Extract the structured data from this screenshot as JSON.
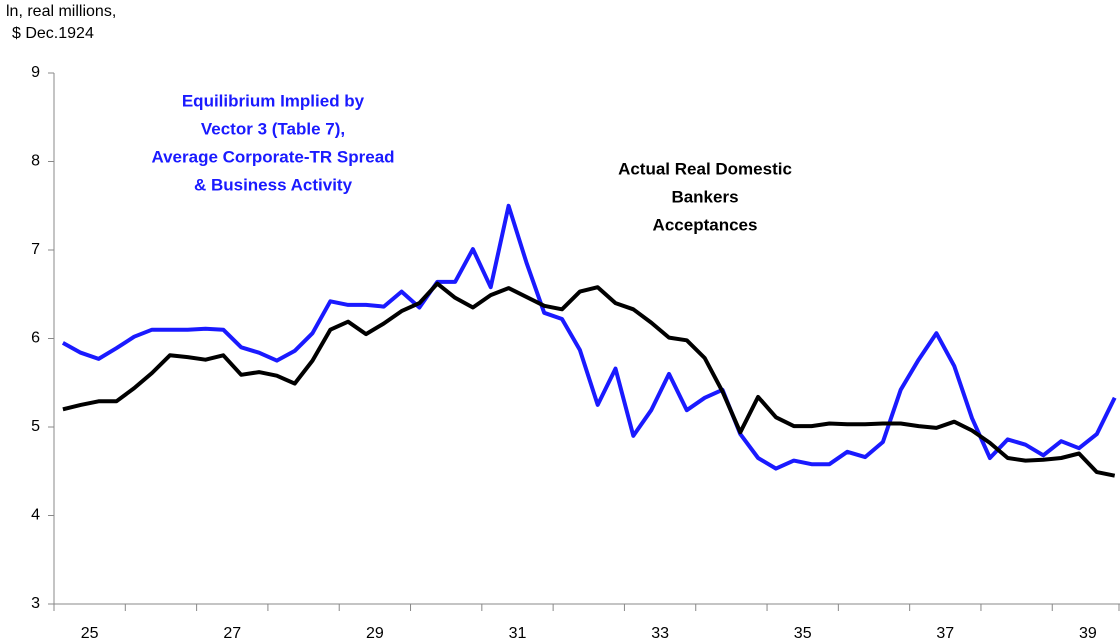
{
  "chart_data": {
    "type": "line",
    "y_label": [
      "ln, real millions,",
      "$ Dec.1924"
    ],
    "annotations": [
      {
        "lines": [
          "Equilibrium Implied by",
          "Vector 3 (Table 7),",
          "Average Corporate-TR Spread",
          "& Business Activity"
        ],
        "color": "#1a1aff"
      },
      {
        "lines": [
          "Actual Real Domestic",
          "Bankers",
          "Acceptances"
        ],
        "color": "#000000"
      }
    ],
    "x": [
      25.125,
      25.375,
      25.625,
      25.875,
      26.125,
      26.375,
      26.625,
      26.875,
      27.125,
      27.375,
      27.625,
      27.875,
      28.125,
      28.375,
      28.625,
      28.875,
      29.125,
      29.375,
      29.625,
      29.875,
      30.125,
      30.375,
      30.625,
      30.875,
      31.125,
      31.375,
      31.625,
      31.875,
      32.125,
      32.375,
      32.625,
      32.875,
      33.125,
      33.375,
      33.625,
      33.875,
      34.125,
      34.375,
      34.625,
      34.875,
      35.125,
      35.375,
      35.625,
      35.875,
      36.125,
      36.375,
      36.625,
      36.875,
      37.125,
      37.375,
      37.625,
      37.875,
      38.125,
      38.375,
      38.625,
      38.875,
      39.125,
      39.375,
      39.625,
      39.875
    ],
    "series": [
      {
        "name": "Equilibrium",
        "color": "#1a1aff",
        "values": [
          5.95,
          5.84,
          5.77,
          5.89,
          6.02,
          6.1,
          6.1,
          6.1,
          6.11,
          6.1,
          5.9,
          5.84,
          5.75,
          5.86,
          6.06,
          6.42,
          6.38,
          6.38,
          6.36,
          6.53,
          6.35,
          6.64,
          6.64,
          7.01,
          6.58,
          7.5,
          6.86,
          6.29,
          6.22,
          5.87,
          5.25,
          5.66,
          4.9,
          5.19,
          5.6,
          5.19,
          5.33,
          5.42,
          4.92,
          4.65,
          4.53,
          4.62,
          4.58,
          4.58,
          4.72,
          4.66,
          4.83,
          5.42,
          5.76,
          6.06,
          5.69,
          5.1,
          4.65,
          4.86,
          4.8,
          4.68,
          4.84,
          4.76,
          4.92,
          5.33
        ]
      },
      {
        "name": "Actual",
        "color": "#000000",
        "values": [
          5.2,
          5.25,
          5.29,
          5.29,
          5.44,
          5.61,
          5.81,
          5.79,
          5.76,
          5.81,
          5.59,
          5.62,
          5.58,
          5.49,
          5.75,
          6.1,
          6.19,
          6.05,
          6.17,
          6.31,
          6.4,
          6.62,
          6.46,
          6.35,
          6.49,
          6.57,
          6.47,
          6.37,
          6.33,
          6.53,
          6.58,
          6.4,
          6.33,
          6.18,
          6.01,
          5.98,
          5.78,
          5.4,
          4.94,
          5.34,
          5.11,
          5.01,
          5.01,
          5.04,
          5.03,
          5.03,
          5.04,
          5.04,
          5.01,
          4.99,
          5.06,
          4.96,
          4.82,
          4.65,
          4.62,
          4.63,
          4.65,
          4.7,
          4.49,
          4.45
        ]
      }
    ],
    "xlim": [
      25,
      39.95
    ],
    "xticks": [
      {
        "value": 25.5,
        "label": "25"
      },
      {
        "value": 27.5,
        "label": "27"
      },
      {
        "value": 29.5,
        "label": "29"
      },
      {
        "value": 31.5,
        "label": "31"
      },
      {
        "value": 33.5,
        "label": "33"
      },
      {
        "value": 35.5,
        "label": "35"
      },
      {
        "value": 37.5,
        "label": "37"
      },
      {
        "value": 39.5,
        "label": "39"
      }
    ],
    "ylim": [
      3,
      9
    ],
    "yticks": [
      3,
      4,
      5,
      6,
      7,
      8,
      9
    ],
    "grid": false
  }
}
